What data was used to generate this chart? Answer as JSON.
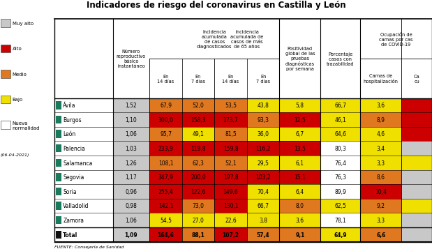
{
  "title": "Indicadores de riesgo del coronavirus en Castilla y León",
  "footer": "FUENTE: Consejería de Sanidad",
  "date": "(06-04-2021)",
  "legend_items": [
    {
      "label": "Muy alto",
      "color": "#c8c8c8"
    },
    {
      "label": "Alto",
      "color": "#cc0000"
    },
    {
      "label": "Medio",
      "color": "#e07820"
    },
    {
      "label": "Bajo",
      "color": "#f0e000"
    },
    {
      "label": "Nueva\nnormalidad",
      "color": "#ffffff"
    }
  ],
  "provinces": [
    "Ávila",
    "Burgos",
    "León",
    "Palencia",
    "Salamanca",
    "Segovia",
    "Soria",
    "Valladolid",
    "Zamora",
    "Total"
  ],
  "province_bold": [
    false,
    false,
    false,
    false,
    false,
    false,
    false,
    false,
    false,
    true
  ],
  "province_marker_colors": [
    "#1a7a5e",
    "#1a7a5e",
    "#1a7a5e",
    "#1a7a5e",
    "#1a7a5e",
    "#1a7a5e",
    "#1a7a5e",
    "#1a7a5e",
    "#1a7a5e",
    "#111111"
  ],
  "num_repr": [
    "1,52",
    "1,10",
    "1,06",
    "1,03",
    "1,26",
    "1,17",
    "0,96",
    "0,98",
    "1,06",
    "1,09"
  ],
  "col1_values": [
    "67,9",
    "300,0",
    "95,7",
    "233,9",
    "108,1",
    "347,9",
    "255,4",
    "142,1",
    "54,5",
    "164,6"
  ],
  "col2_values": [
    "52,0",
    "158,3",
    "49,1",
    "119,8",
    "62,3",
    "200,0",
    "122,6",
    "73,0",
    "27,0",
    "88,1"
  ],
  "col3_values": [
    "53,5",
    "173,7",
    "81,5",
    "159,8",
    "52,1",
    "197,8",
    "149,6",
    "130,1",
    "22,6",
    "107,2"
  ],
  "col4_values": [
    "43,8",
    "93,3",
    "36,0",
    "116,2",
    "29,5",
    "103,2",
    "70,4",
    "66,7",
    "3,8",
    "57,4"
  ],
  "col5_values": [
    "5,8",
    "12,5",
    "6,7",
    "13,5",
    "6,1",
    "15,1",
    "6,4",
    "8,0",
    "3,6",
    "9,1"
  ],
  "col6_values": [
    "66,7",
    "46,1",
    "64,6",
    "80,3",
    "76,4",
    "76,3",
    "89,9",
    "62,5",
    "78,1",
    "64,9"
  ],
  "col7_values": [
    "3,6",
    "8,9",
    "4,6",
    "3,4",
    "3,3",
    "8,6",
    "10,4",
    "9,2",
    "3,3",
    "6,6"
  ],
  "col8_values": [
    "",
    "",
    "",
    "",
    "",
    "",
    "",
    "",
    "",
    ""
  ],
  "cell_colors": [
    [
      "#c8c8c8",
      "#e07820",
      "#e07820",
      "#e07820",
      "#f0e000",
      "#f0e000",
      "#f0e000",
      "#f0e000",
      "#cc0000"
    ],
    [
      "#c8c8c8",
      "#cc0000",
      "#cc0000",
      "#cc0000",
      "#e07820",
      "#cc0000",
      "#f0e000",
      "#e07820",
      "#cc0000"
    ],
    [
      "#c8c8c8",
      "#e07820",
      "#f0e000",
      "#e07820",
      "#f0e000",
      "#f0e000",
      "#f0e000",
      "#f0e000",
      "#cc0000"
    ],
    [
      "#c8c8c8",
      "#cc0000",
      "#cc0000",
      "#cc0000",
      "#cc0000",
      "#cc0000",
      "#ffffff",
      "#f0e000",
      "#c8c8c8"
    ],
    [
      "#c8c8c8",
      "#e07820",
      "#e07820",
      "#e07820",
      "#f0e000",
      "#f0e000",
      "#ffffff",
      "#f0e000",
      "#f0e000"
    ],
    [
      "#c8c8c8",
      "#cc0000",
      "#cc0000",
      "#cc0000",
      "#cc0000",
      "#cc0000",
      "#ffffff",
      "#e07820",
      "#c8c8c8"
    ],
    [
      "#c8c8c8",
      "#cc0000",
      "#cc0000",
      "#cc0000",
      "#f0e000",
      "#f0e000",
      "#ffffff",
      "#cc0000",
      "#c8c8c8"
    ],
    [
      "#c8c8c8",
      "#cc0000",
      "#e07820",
      "#cc0000",
      "#f0e000",
      "#e07820",
      "#f0e000",
      "#e07820",
      "#f0e000"
    ],
    [
      "#c8c8c8",
      "#f0e000",
      "#f0e000",
      "#f0e000",
      "#f0e000",
      "#f0e000",
      "#ffffff",
      "#f0e000",
      "#c8c8c8"
    ],
    [
      "#c8c8c8",
      "#cc0000",
      "#e07820",
      "#cc0000",
      "#e07820",
      "#e07820",
      "#f0e000",
      "#e07820",
      "#c8c8c8"
    ]
  ]
}
